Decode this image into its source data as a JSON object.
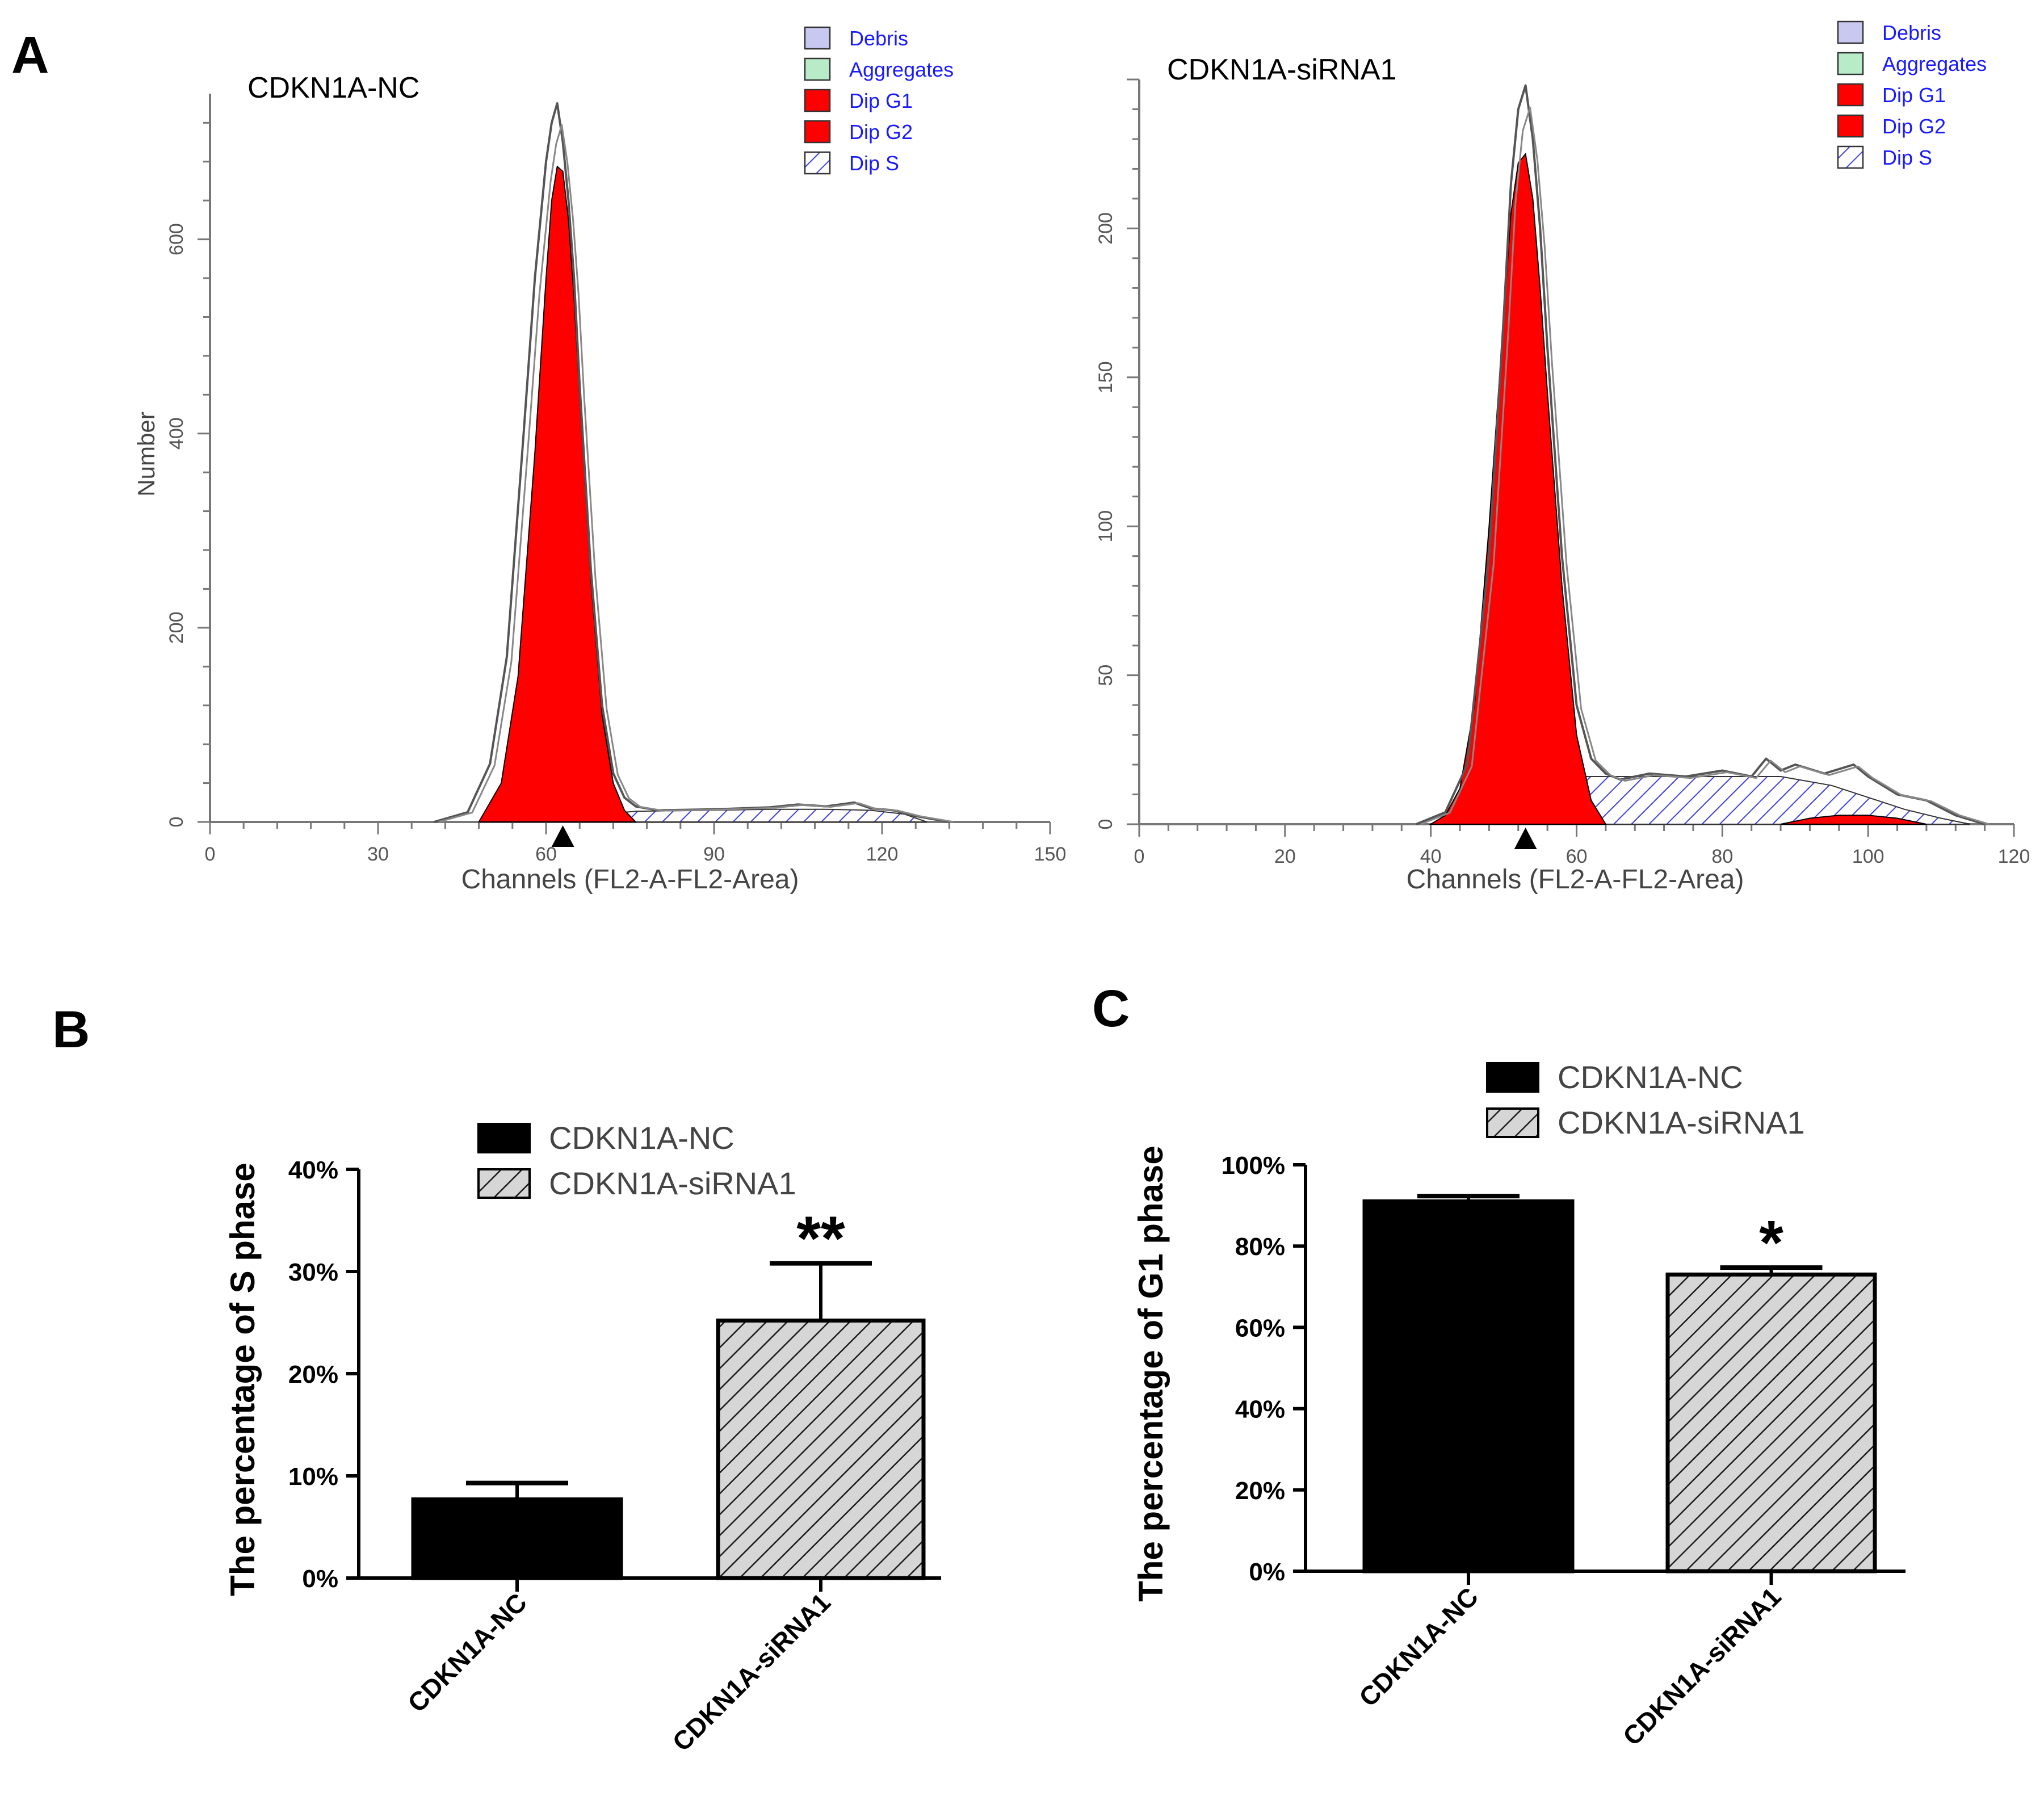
{
  "panel_labels": {
    "a": "A",
    "b": "B",
    "c": "C"
  },
  "legend_histogram": {
    "items": [
      {
        "label": "Debris",
        "fill": "#c8c8f0",
        "pattern": "solid"
      },
      {
        "label": "Aggregates",
        "fill": "#b8ecc8",
        "pattern": "solid"
      },
      {
        "label": "Dip G1",
        "fill": "#ff0000",
        "pattern": "solid"
      },
      {
        "label": "Dip G2",
        "fill": "#ff0000",
        "pattern": "solid"
      },
      {
        "label": "Dip S",
        "fill": "#5050e0",
        "pattern": "hatch"
      }
    ],
    "text_color": "#1a1aff"
  },
  "colors": {
    "g1": "#ff0000",
    "s_hatch": "#4040e0",
    "trace": "#555555",
    "bar_solid": "#000000",
    "bar_hatched_bg": "#d8d8d8"
  },
  "chart_data": [
    {
      "type": "area",
      "panel": "A",
      "title": "CDKN1A-NC",
      "xlabel": "Channels (FL2-A-FL2-Area)",
      "ylabel": "Number",
      "xlim": [
        0,
        150
      ],
      "ylim": [
        0,
        750
      ],
      "xticks": [
        "0",
        "30",
        "60",
        "90",
        "120",
        "150"
      ],
      "yticks": [
        "0",
        "200",
        "400",
        "600"
      ],
      "marker_x": 63,
      "series": [
        {
          "name": "Dip G1",
          "x": [
            48,
            52,
            55,
            58,
            60,
            61,
            62,
            63,
            64,
            65,
            66,
            68,
            70,
            72,
            74,
            76
          ],
          "y": [
            0,
            40,
            150,
            380,
            560,
            640,
            675,
            670,
            620,
            540,
            440,
            250,
            110,
            40,
            12,
            0
          ]
        },
        {
          "name": "Dip S",
          "x": [
            60,
            70,
            76,
            90,
            100,
            110,
            118,
            124,
            128
          ],
          "y": [
            0,
            8,
            11,
            12,
            13,
            13,
            12,
            8,
            0
          ]
        },
        {
          "name": "Raw",
          "x": [
            40,
            46,
            50,
            53,
            56,
            58,
            60,
            61,
            62,
            63,
            64,
            65,
            66,
            68,
            70,
            72,
            74,
            76,
            80,
            90,
            100,
            105,
            110,
            115,
            118,
            122,
            126,
            130,
            132
          ],
          "y": [
            0,
            10,
            60,
            170,
            400,
            560,
            680,
            720,
            740,
            700,
            640,
            560,
            450,
            260,
            120,
            50,
            25,
            16,
            12,
            13,
            15,
            18,
            16,
            20,
            14,
            12,
            6,
            2,
            0
          ]
        }
      ]
    },
    {
      "type": "area",
      "panel": "A",
      "title": "CDKN1A-siRNA1",
      "xlabel": "Channels (FL2-A-FL2-Area)",
      "ylabel": "",
      "xlim": [
        0,
        120
      ],
      "ylim": [
        0,
        250
      ],
      "xticks": [
        "0",
        "20",
        "40",
        "60",
        "80",
        "100",
        "120"
      ],
      "yticks": [
        "0",
        "50",
        "100",
        "150",
        "200"
      ],
      "marker_x": 53,
      "series": [
        {
          "name": "Dip G1",
          "x": [
            40,
            42,
            44,
            46,
            48,
            50,
            51,
            52,
            53,
            54,
            55,
            56,
            58,
            60,
            62,
            64
          ],
          "y": [
            0,
            3,
            12,
            40,
            100,
            170,
            205,
            222,
            225,
            210,
            180,
            145,
            80,
            30,
            8,
            0
          ]
        },
        {
          "name": "Dip S",
          "x": [
            50,
            55,
            60,
            70,
            80,
            88,
            95,
            100,
            105,
            110,
            114
          ],
          "y": [
            0,
            8,
            16,
            16,
            16,
            16,
            13,
            9,
            5,
            2,
            0
          ]
        },
        {
          "name": "Dip G2",
          "x": [
            88,
            92,
            96,
            100,
            104,
            108
          ],
          "y": [
            0,
            2,
            3,
            3,
            2,
            0
          ]
        },
        {
          "name": "Raw",
          "x": [
            38,
            42,
            45,
            48,
            50,
            51,
            52,
            53,
            54,
            55,
            56,
            58,
            60,
            62,
            64,
            66,
            70,
            75,
            80,
            84,
            86,
            88,
            90,
            94,
            98,
            100,
            104,
            108,
            112,
            116
          ],
          "y": [
            0,
            4,
            20,
            90,
            170,
            215,
            240,
            248,
            230,
            200,
            160,
            90,
            40,
            22,
            17,
            15,
            17,
            16,
            18,
            16,
            22,
            18,
            20,
            17,
            20,
            16,
            10,
            8,
            3,
            0
          ]
        }
      ]
    },
    {
      "type": "bar",
      "panel": "B",
      "title": "",
      "ylabel": "The percentage of S phase",
      "ylim": [
        0,
        40
      ],
      "yticks": [
        "0%",
        "10%",
        "20%",
        "30%",
        "40%"
      ],
      "categories": [
        "CDKN1A-NC",
        "CDKN1A-siRNA1"
      ],
      "values": [
        7.7,
        25.2
      ],
      "errors": [
        1.6,
        5.6
      ],
      "significance": [
        "",
        "**"
      ],
      "legend": [
        "CDKN1A-NC",
        "CDKN1A-siRNA1"
      ]
    },
    {
      "type": "bar",
      "panel": "C",
      "title": "",
      "ylabel": "The percentage of G1 phase",
      "ylim": [
        0,
        100
      ],
      "yticks": [
        "0%",
        "20%",
        "40%",
        "60%",
        "80%",
        "100%"
      ],
      "categories": [
        "CDKN1A-NC",
        "CDKN1A-siRNA1"
      ],
      "values": [
        91,
        73
      ],
      "errors": [
        1.3,
        1.7
      ],
      "significance": [
        "",
        "*"
      ],
      "legend": [
        "CDKN1A-NC",
        "CDKN1A-siRNA1"
      ]
    }
  ]
}
